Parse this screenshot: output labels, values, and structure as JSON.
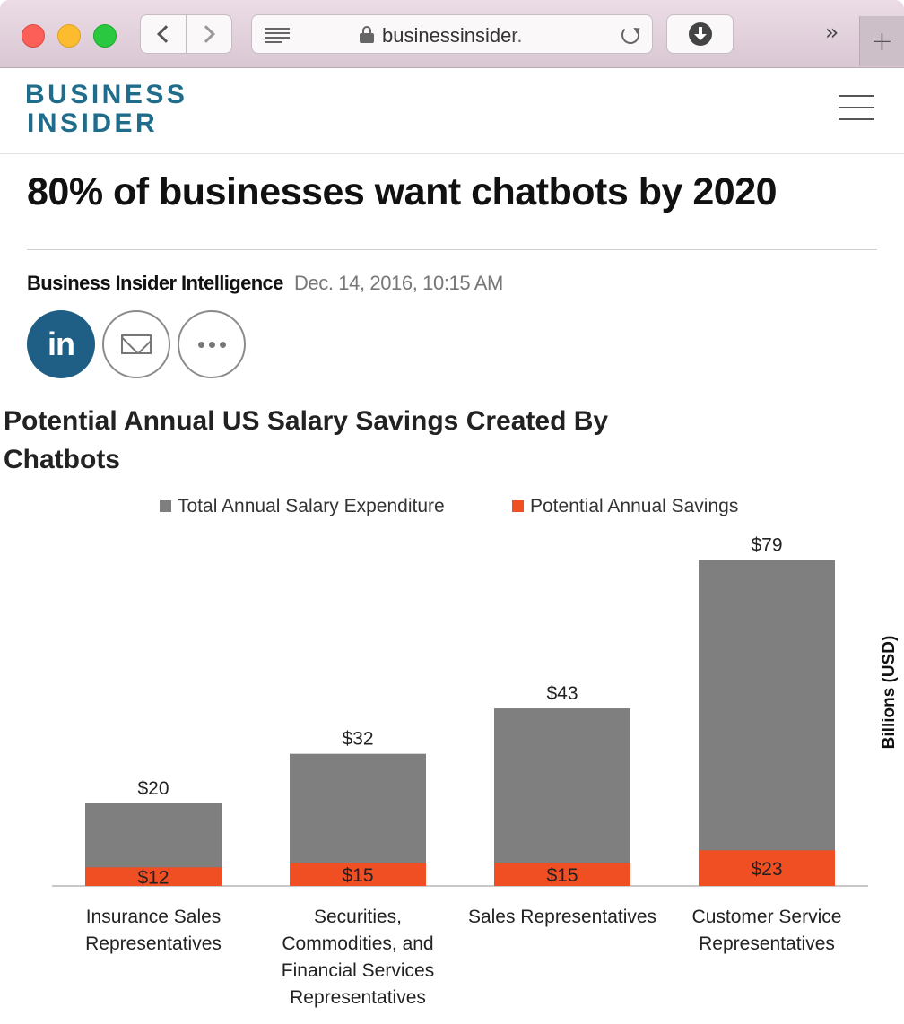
{
  "browser": {
    "url": "businessinsider.",
    "colors": {
      "close": "#fc5f57",
      "minimize": "#fdbc2e",
      "zoom": "#29c840"
    },
    "icons": [
      "back-icon",
      "forward-icon",
      "reader-icon",
      "lock-icon",
      "reload-icon",
      "download-icon",
      "more-tabs-icon",
      "new-tab-icon"
    ]
  },
  "site": {
    "logo_line1": "BUSINESS",
    "logo_line2": "INSIDER",
    "brand_color": "#1f6d8b"
  },
  "article": {
    "headline": "80% of businesses want chatbots by 2020",
    "author": "Business Insider Intelligence",
    "date": "Dec. 14, 2016, 10:15 AM",
    "share": {
      "linkedin_label": "in"
    }
  },
  "chart_data": {
    "type": "bar",
    "title": "Potential Annual US Salary Savings Created By Chatbots",
    "ylabel": "Billions (USD)",
    "xlabel": "",
    "legend_position": "top-center",
    "grid": false,
    "ylim": [
      0,
      80
    ],
    "categories": [
      [
        "Insurance Sales",
        "Representatives"
      ],
      [
        "Securities,",
        "Commodities, and",
        "Financial Services",
        "Representatives"
      ],
      [
        "Sales Representatives"
      ],
      [
        "Customer Service",
        "Representatives"
      ]
    ],
    "series": [
      {
        "name": "Total Annual Salary Expenditure",
        "color": "#7f7f7f",
        "values": [
          20,
          32,
          43,
          79
        ],
        "labels": [
          "$20",
          "$32",
          "$43",
          "$79"
        ]
      },
      {
        "name": "Potential Annual Savings",
        "color": "#f04e23",
        "values": [
          12,
          15,
          15,
          23
        ],
        "labels": [
          "$12",
          "$15",
          "$15",
          "$23"
        ]
      }
    ]
  }
}
